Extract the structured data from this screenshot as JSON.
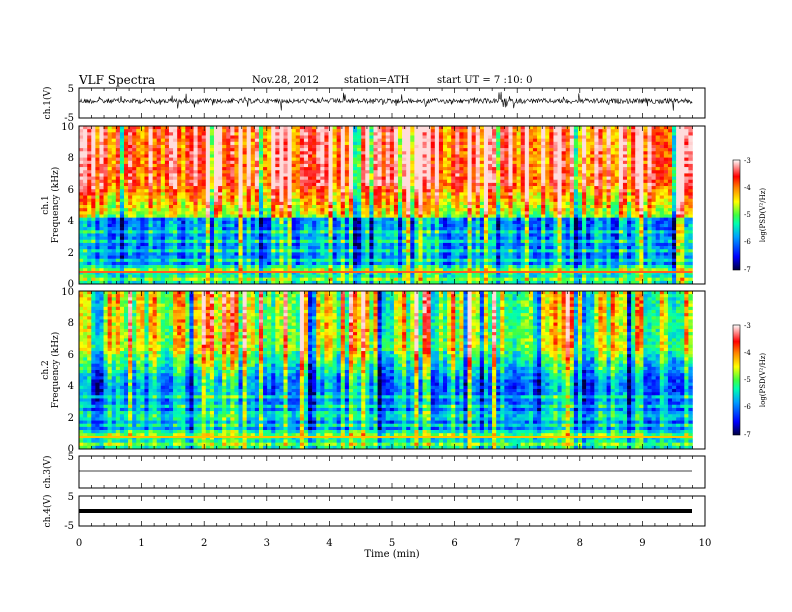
{
  "header": {
    "title": "VLF  Spectra",
    "date": "Nov.28, 2012",
    "station": "station=ATH",
    "start": "start  UT  =   7  :10: 0"
  },
  "chart_data": [
    {
      "type": "line",
      "name": "ch1-waveform",
      "ylabel": "ch.1(V)",
      "ylim": [
        -5,
        5
      ],
      "yticks": [
        "5",
        "-5"
      ],
      "xlim": [
        0,
        10
      ]
    },
    {
      "type": "heatmap",
      "name": "ch1-spectrogram",
      "ylabel": "ch.1\nFrequency  (kHz)",
      "ylim": [
        0,
        10
      ],
      "yticks": [
        "0",
        "2",
        "4",
        "6",
        "8",
        "10"
      ],
      "colorbar": {
        "label": "log(PSD(V²/Hz)",
        "range": [
          -7,
          -3
        ],
        "ticks": [
          "-3",
          "-4",
          "-5",
          "-6",
          "-7"
        ]
      }
    },
    {
      "type": "heatmap",
      "name": "ch2-spectrogram",
      "ylabel": "ch.2\nFrequency  (kHz)",
      "ylim": [
        0,
        10
      ],
      "yticks": [
        "0",
        "2",
        "4",
        "6",
        "8",
        "10"
      ],
      "colorbar": {
        "label": "log(PSD(V²/Hz)",
        "range": [
          -7,
          -3
        ],
        "ticks": [
          "-3",
          "-4",
          "-5",
          "-6",
          "-7"
        ]
      }
    },
    {
      "type": "line",
      "name": "ch3-waveform",
      "ylabel": "ch.3(V)",
      "ylim": [
        -5,
        5
      ],
      "yticks": [
        "5"
      ]
    },
    {
      "type": "line",
      "name": "ch4-waveform",
      "ylabel": "ch.4(V)",
      "ylim": [
        -5,
        5
      ],
      "yticks": [
        "5",
        "-5"
      ]
    }
  ],
  "xaxis": {
    "label": "Time  (min)",
    "xlim": [
      0,
      10
    ],
    "ticks": [
      "0",
      "1",
      "2",
      "3",
      "4",
      "5",
      "6",
      "7",
      "8",
      "9",
      "10"
    ],
    "data_end": 9.8
  },
  "colors": {
    "colormap": [
      "#000050",
      "#0000ff",
      "#00a0ff",
      "#00ffb0",
      "#40ff40",
      "#ffff00",
      "#ff8000",
      "#ff0000",
      "#ffd0d0",
      "#ffffff"
    ]
  }
}
